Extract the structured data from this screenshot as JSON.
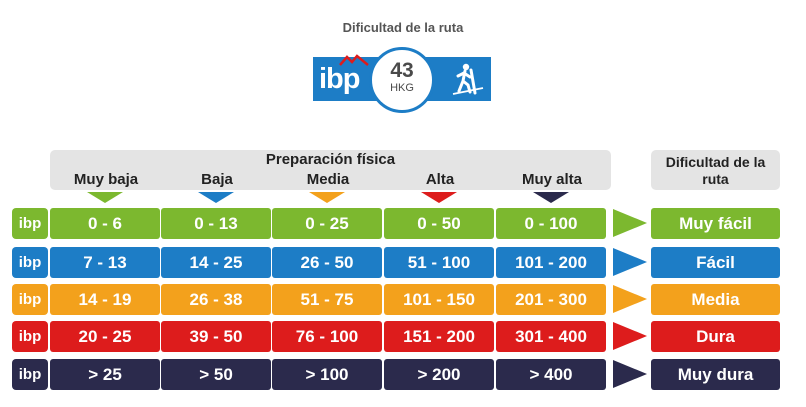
{
  "header": {
    "title": "Dificultad de la ruta",
    "badge_logo": "ibp",
    "badge_value": "43",
    "badge_unit": "HKG",
    "badge_icon": "hiker-icon"
  },
  "table": {
    "prep_title": "Preparación física",
    "levels": [
      "Muy baja",
      "Baja",
      "Media",
      "Alta",
      "Muy alta"
    ],
    "level_colors": [
      "#7cb82f",
      "#1d7dc6",
      "#f3a11c",
      "#dd1c1c",
      "#2b2a4c"
    ],
    "difficulty_header": "Dificultad de la ruta",
    "row_logo": "ibp",
    "rows": [
      {
        "color": "#7cb82f",
        "cells": [
          "0 - 6",
          "0 - 13",
          "0 - 25",
          "0 - 50",
          "0 - 100"
        ],
        "difficulty": "Muy fácil"
      },
      {
        "color": "#1d7dc6",
        "cells": [
          "7 - 13",
          "14 - 25",
          "26 - 50",
          "51 - 100",
          "101 - 200"
        ],
        "difficulty": "Fácil"
      },
      {
        "color": "#f3a11c",
        "cells": [
          "14 - 19",
          "26 - 38",
          "51 - 75",
          "101 - 150",
          "201 - 300"
        ],
        "difficulty": "Media"
      },
      {
        "color": "#dd1c1c",
        "cells": [
          "20 - 25",
          "39 - 50",
          "76 - 100",
          "151 - 200",
          "301 - 400"
        ],
        "difficulty": "Dura"
      },
      {
        "color": "#2b2a4c",
        "cells": [
          "> 25",
          "> 50",
          "> 100",
          "> 200",
          "> 400"
        ],
        "difficulty": "Muy dura"
      }
    ]
  }
}
